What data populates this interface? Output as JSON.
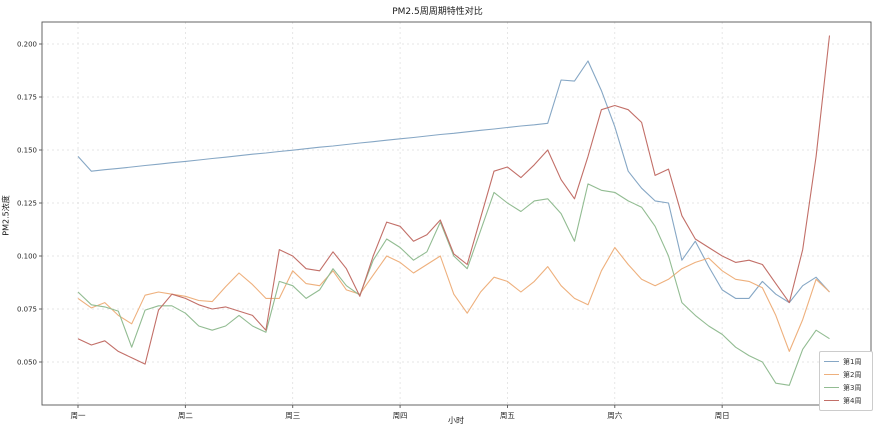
{
  "chart_data": {
    "type": "line",
    "title": "PM2.5周周期特性对比",
    "xlabel": "小时",
    "ylabel": "PM2.5浓度",
    "x_step_hours": 3,
    "x_tick_hours": [
      0,
      24,
      48,
      72,
      96,
      120,
      144
    ],
    "x_tick_labels": [
      "周一",
      "周二",
      "周三",
      "周四",
      "周五",
      "周六",
      "周日"
    ],
    "y_ticks": [
      0.05,
      0.075,
      0.1,
      0.125,
      0.15,
      0.175,
      0.2
    ],
    "ylim": [
      0.03,
      0.21
    ],
    "grid": "dashed both axes",
    "legend_position": "lower right",
    "series": [
      {
        "name": "第1周",
        "color": "#86a7c5",
        "values": [
          0.147,
          0.14,
          0.1407,
          0.1413,
          0.142,
          0.1427,
          0.1433,
          0.144,
          0.1446,
          0.1453,
          0.146,
          0.1466,
          0.1473,
          0.148,
          0.1486,
          0.1493,
          0.1499,
          0.1506,
          0.1513,
          0.1519,
          0.1526,
          0.1533,
          0.1539,
          0.1546,
          0.1553,
          0.1559,
          0.1566,
          0.1573,
          0.1579,
          0.1586,
          0.1593,
          0.1599,
          0.1606,
          0.1613,
          0.1619,
          0.1626,
          0.183,
          0.1825,
          0.192,
          0.178,
          0.161,
          0.14,
          0.132,
          0.126,
          0.125,
          0.098,
          0.107,
          0.095,
          0.084,
          0.08,
          0.08,
          0.088,
          0.082,
          0.078,
          0.086,
          0.09,
          0.083
        ]
      },
      {
        "name": "第2周",
        "color": "#eeb07d",
        "values": [
          0.08,
          0.0755,
          0.078,
          0.072,
          0.068,
          0.0815,
          0.083,
          0.082,
          0.081,
          0.079,
          0.0785,
          0.0855,
          0.092,
          0.0865,
          0.08,
          0.08,
          0.093,
          0.087,
          0.086,
          0.093,
          0.084,
          0.082,
          0.091,
          0.1,
          0.097,
          0.092,
          0.096,
          0.1,
          0.082,
          0.073,
          0.083,
          0.09,
          0.088,
          0.083,
          0.088,
          0.095,
          0.086,
          0.08,
          0.077,
          0.093,
          0.104,
          0.096,
          0.089,
          0.086,
          0.089,
          0.094,
          0.097,
          0.099,
          0.093,
          0.089,
          0.088,
          0.085,
          0.072,
          0.055,
          0.07,
          0.089,
          0.083
        ]
      },
      {
        "name": "第3周",
        "color": "#92bc92",
        "values": [
          0.083,
          0.077,
          0.076,
          0.074,
          0.057,
          0.0745,
          0.0765,
          0.0765,
          0.073,
          0.067,
          0.065,
          0.067,
          0.072,
          0.067,
          0.064,
          0.088,
          0.086,
          0.08,
          0.084,
          0.094,
          0.086,
          0.0815,
          0.098,
          0.108,
          0.104,
          0.098,
          0.102,
          0.116,
          0.1,
          0.094,
          0.112,
          0.13,
          0.125,
          0.121,
          0.126,
          0.127,
          0.12,
          0.107,
          0.134,
          0.131,
          0.13,
          0.126,
          0.123,
          0.114,
          0.1,
          0.078,
          0.072,
          0.067,
          0.063,
          0.057,
          0.053,
          0.05,
          0.04,
          0.039,
          0.056,
          0.065,
          0.061
        ]
      },
      {
        "name": "第4周",
        "color": "#c26f68",
        "values": [
          0.061,
          0.058,
          0.06,
          0.055,
          0.052,
          0.049,
          0.0745,
          0.082,
          0.08,
          0.077,
          0.075,
          0.076,
          0.074,
          0.072,
          0.065,
          0.103,
          0.1,
          0.094,
          0.093,
          0.102,
          0.094,
          0.081,
          0.1,
          0.116,
          0.114,
          0.107,
          0.11,
          0.117,
          0.101,
          0.096,
          0.118,
          0.14,
          0.142,
          0.137,
          0.143,
          0.15,
          0.136,
          0.127,
          0.147,
          0.169,
          0.171,
          0.169,
          0.163,
          0.138,
          0.141,
          0.119,
          0.108,
          0.104,
          0.1,
          0.097,
          0.098,
          0.096,
          0.087,
          0.078,
          0.103,
          0.147,
          0.204
        ]
      }
    ]
  }
}
